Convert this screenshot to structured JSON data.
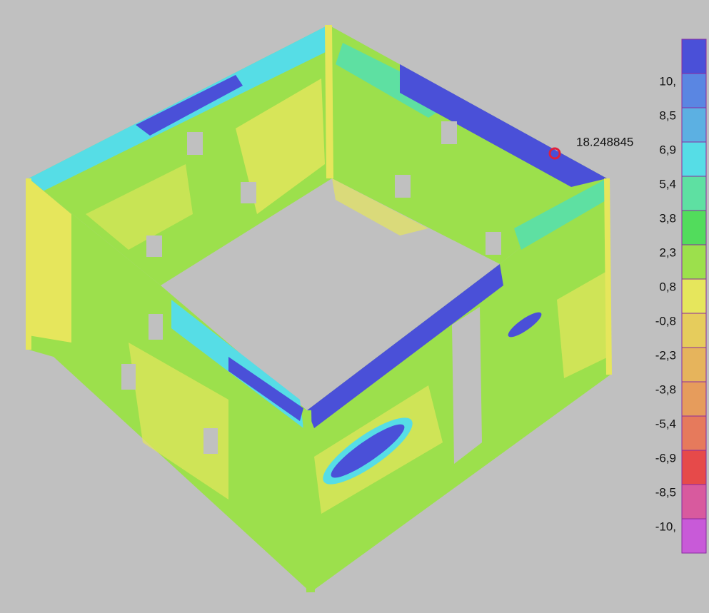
{
  "annotation": "18.248845",
  "legend": {
    "labels": [
      "10,",
      "8,5",
      "6,9",
      "5,4",
      "3,8",
      "2,3",
      "0,8",
      "-0,8",
      "-2,3",
      "-3,8",
      "-5,4",
      "-6,9",
      "-8,5",
      "-10,"
    ],
    "colors": [
      "#4a50d8",
      "#5a86e2",
      "#5cb0e2",
      "#56dde6",
      "#5ee0a2",
      "#52dc5c",
      "#9ce04c",
      "#e6e65c",
      "#e6cc5c",
      "#e6b45c",
      "#e69c5c",
      "#e67a5c",
      "#e64a4a",
      "#d85a9e",
      "#c85ad8"
    ]
  }
}
